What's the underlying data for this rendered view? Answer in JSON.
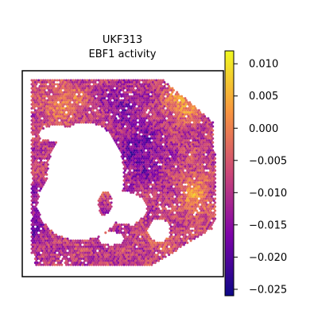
{
  "chart_data": {
    "type": "heatmap",
    "title": "UKF313",
    "subtitle": "EBF1 activity",
    "xlabel": "",
    "ylabel": "",
    "grid": false,
    "colormap": "plasma",
    "colorbar": {
      "range": [
        -0.026,
        0.012
      ],
      "ticks": [
        0.01,
        0.005,
        0.0,
        -0.005,
        -0.01,
        -0.015,
        -0.02,
        -0.025
      ],
      "tick_labels": [
        "0.010",
        "0.005",
        "0.000",
        "−0.005",
        "−0.010",
        "−0.015",
        "−0.020",
        "−0.025"
      ]
    },
    "colors": {
      "low": "#0d0887",
      "mid_low": "#7e03a8",
      "mid": "#cc4778",
      "mid_high": "#f89540",
      "high": "#f0f921"
    }
  }
}
